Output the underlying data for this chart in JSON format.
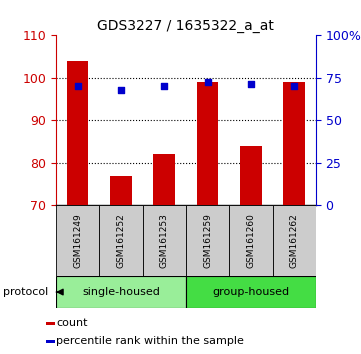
{
  "title": "GDS3227 / 1635322_a_at",
  "categories": [
    "GSM161249",
    "GSM161252",
    "GSM161253",
    "GSM161259",
    "GSM161260",
    "GSM161262"
  ],
  "bar_values": [
    104,
    77,
    82,
    99,
    84,
    99
  ],
  "bar_color": "#cc0000",
  "percentile_values": [
    70.5,
    68.0,
    70.5,
    72.5,
    71.5,
    70.5
  ],
  "percentile_color": "#0000cc",
  "left_ylim": [
    70,
    110
  ],
  "left_yticks": [
    70,
    80,
    90,
    100,
    110
  ],
  "right_ylim": [
    0,
    100
  ],
  "right_yticks": [
    0,
    25,
    50,
    75,
    100
  ],
  "right_yticklabels": [
    "0",
    "25",
    "50",
    "75",
    "100%"
  ],
  "left_tick_color": "#cc0000",
  "right_tick_color": "#0000cc",
  "groups": [
    {
      "label": "single-housed",
      "start": 0,
      "end": 3,
      "color": "#99ee99"
    },
    {
      "label": "group-housed",
      "start": 3,
      "end": 6,
      "color": "#44dd44"
    }
  ],
  "protocol_label": "protocol",
  "legend_items": [
    {
      "color": "#cc0000",
      "label": "count"
    },
    {
      "color": "#0000cc",
      "label": "percentile rank within the sample"
    }
  ],
  "bar_width": 0.5,
  "grid_yticks": [
    80,
    90,
    100
  ],
  "ticklabel_bg": "#cccccc",
  "figsize": [
    3.61,
    3.54
  ],
  "dpi": 100
}
